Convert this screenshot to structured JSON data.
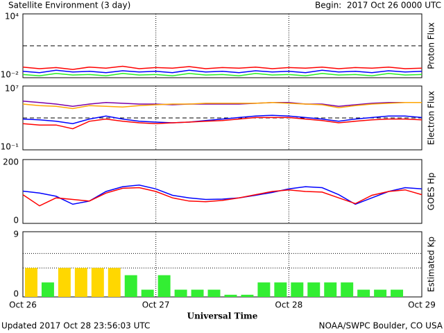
{
  "header": {
    "title": "Satellite Environment (3 day)",
    "begin": "Begin:  2017 Oct 26 0000 UTC"
  },
  "footer": {
    "updated": "Updated 2017 Oct 28 23:56:03 UTC",
    "credit": "NOAA/SWPC Boulder, CO USA"
  },
  "chart_data": [
    {
      "type": "line",
      "ylabel": "Proton Flux",
      "log": true,
      "ylim": [
        0.01,
        10000
      ],
      "yticks": [
        {
          "value": 10000,
          "label": "10⁴"
        },
        {
          "value": 0.01,
          "label": "10⁻²"
        }
      ],
      "reference_line": 10,
      "xlim": [
        0,
        72
      ],
      "xticks": [
        0,
        24,
        48,
        72
      ],
      "x": [
        0,
        3,
        6,
        9,
        12,
        15,
        18,
        21,
        24,
        27,
        30,
        33,
        36,
        39,
        42,
        45,
        48,
        51,
        54,
        57,
        60,
        63,
        66,
        69,
        72
      ],
      "series": [
        {
          "color": "#ff0000",
          "values": [
            0.1,
            0.07,
            0.09,
            0.06,
            0.1,
            0.08,
            0.12,
            0.07,
            0.09,
            0.08,
            0.11,
            0.07,
            0.09,
            0.08,
            0.1,
            0.07,
            0.09,
            0.08,
            0.1,
            0.07,
            0.09,
            0.08,
            0.1,
            0.07,
            0.08
          ]
        },
        {
          "color": "#0000ff",
          "values": [
            0.04,
            0.03,
            0.05,
            0.035,
            0.04,
            0.03,
            0.045,
            0.035,
            0.04,
            0.03,
            0.05,
            0.035,
            0.04,
            0.03,
            0.045,
            0.035,
            0.04,
            0.03,
            0.05,
            0.035,
            0.04,
            0.03,
            0.045,
            0.035,
            0.04
          ]
        },
        {
          "color": "#22ee22",
          "values": [
            0.02,
            0.015,
            0.025,
            0.018,
            0.02,
            0.015,
            0.025,
            0.018,
            0.02,
            0.015,
            0.025,
            0.018,
            0.02,
            0.015,
            0.025,
            0.018,
            0.02,
            0.015,
            0.025,
            0.018,
            0.02,
            0.015,
            0.025,
            0.018,
            0.02
          ]
        }
      ]
    },
    {
      "type": "line",
      "ylabel": "Electron Flux",
      "log": true,
      "ylim": [
        0.1,
        10000000
      ],
      "yticks": [
        {
          "value": 10000000,
          "label": "10⁷"
        },
        {
          "value": 0.1,
          "label": "10⁻¹"
        }
      ],
      "reference_line": 1000,
      "xlim": [
        0,
        72
      ],
      "xticks": [
        0,
        24,
        48,
        72
      ],
      "x": [
        0,
        3,
        6,
        9,
        12,
        15,
        18,
        21,
        24,
        27,
        30,
        33,
        36,
        39,
        42,
        45,
        48,
        51,
        54,
        57,
        60,
        63,
        66,
        69,
        72
      ],
      "series": [
        {
          "color": "#7a00a8",
          "values": [
            130000,
            85000,
            55000,
            29000,
            55000,
            85000,
            69000,
            55000,
            55000,
            45000,
            55000,
            55000,
            55000,
            55000,
            69000,
            85000,
            85000,
            55000,
            55000,
            29000,
            45000,
            69000,
            85000,
            85000,
            85000
          ]
        },
        {
          "color": "#ffa500",
          "values": [
            55000,
            35000,
            29000,
            15000,
            35000,
            29000,
            23000,
            35000,
            45000,
            55000,
            55000,
            69000,
            69000,
            69000,
            69000,
            85000,
            69000,
            55000,
            45000,
            19000,
            35000,
            55000,
            69000,
            85000,
            85000
          ]
        },
        {
          "color": "#0000ff",
          "values": [
            720,
            580,
            380,
            195,
            720,
            1740,
            720,
            380,
            300,
            245,
            300,
            470,
            720,
            1120,
            1740,
            2140,
            1740,
            1120,
            720,
            380,
            720,
            1120,
            1740,
            1740,
            1120
          ]
        },
        {
          "color": "#ff0000",
          "values": [
            195,
            130,
            130,
            44,
            380,
            720,
            380,
            245,
            195,
            245,
            300,
            380,
            470,
            720,
            1120,
            1120,
            1120,
            720,
            470,
            245,
            380,
            580,
            720,
            720,
            580
          ]
        }
      ]
    },
    {
      "type": "line",
      "ylabel": "GOES Hp",
      "log": false,
      "ylim": [
        0,
        200
      ],
      "yticks": [
        0,
        200
      ],
      "xlim": [
        0,
        72
      ],
      "xticks": [
        0,
        24,
        48,
        72
      ],
      "x": [
        0,
        3,
        6,
        9,
        12,
        15,
        18,
        21,
        24,
        27,
        30,
        33,
        36,
        39,
        42,
        45,
        48,
        51,
        54,
        57,
        60,
        63,
        66,
        69,
        72
      ],
      "series": [
        {
          "color": "#0000ff",
          "values": [
            101,
            95,
            85,
            60,
            70,
            100,
            115,
            120,
            108,
            88,
            80,
            75,
            76,
            80,
            88,
            97,
            108,
            115,
            112,
            90,
            60,
            80,
            100,
            112,
            108
          ]
        },
        {
          "color": "#ff0000",
          "values": [
            90,
            55,
            80,
            75,
            70,
            95,
            110,
            112,
            100,
            80,
            70,
            68,
            72,
            80,
            90,
            100,
            105,
            100,
            98,
            80,
            62,
            88,
            100,
            105,
            90
          ]
        }
      ]
    },
    {
      "type": "bar",
      "ylabel": "Estimated Kp",
      "xlabel": "Universal Time",
      "ylim": [
        0,
        9
      ],
      "yticks": [
        0,
        9
      ],
      "grid_y": [
        4,
        6
      ],
      "xlim": [
        0,
        72
      ],
      "xticks": [
        {
          "value": 0,
          "label": "Oct 26"
        },
        {
          "value": 24,
          "label": "Oct 27"
        },
        {
          "value": 48,
          "label": "Oct 28"
        },
        {
          "value": 72,
          "label": "Oct 29"
        }
      ],
      "x": [
        0,
        3,
        6,
        9,
        12,
        15,
        18,
        21,
        24,
        27,
        30,
        33,
        36,
        39,
        42,
        45,
        48,
        51,
        54,
        57,
        60,
        63,
        66
      ],
      "values": [
        4,
        2,
        4,
        4,
        4,
        4,
        3,
        1,
        3,
        1,
        1,
        1,
        0.3,
        0.3,
        2,
        2,
        2,
        2,
        2,
        2,
        1,
        1,
        1
      ],
      "colors": [
        "#ffd700",
        "#33ee33",
        "#ffd700",
        "#ffd700",
        "#ffd700",
        "#ffd700",
        "#33ee33",
        "#33ee33",
        "#33ee33",
        "#33ee33",
        "#33ee33",
        "#33ee33",
        "#33ee33",
        "#33ee33",
        "#33ee33",
        "#33ee33",
        "#33ee33",
        "#33ee33",
        "#33ee33",
        "#33ee33",
        "#33ee33",
        "#33ee33",
        "#33ee33"
      ]
    }
  ]
}
